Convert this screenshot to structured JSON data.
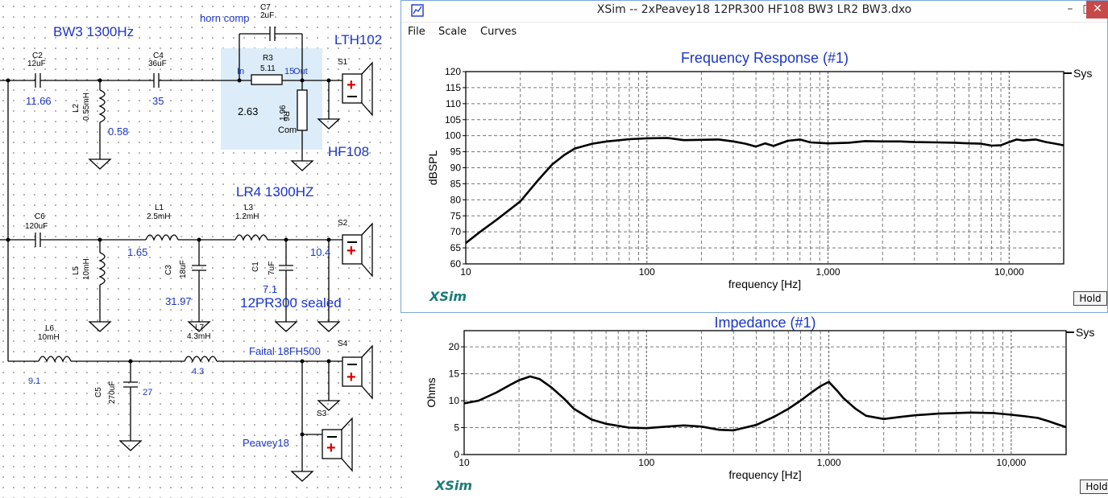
{
  "schematic": {
    "labels": {
      "bw3": "BW3 1300Hz",
      "horn_comp": "horn comp",
      "lth102": "LTH102",
      "hf108": "HF108",
      "lr4": "LR4 1300HZ",
      "sealed": "12PR300 sealed",
      "faital": "Faital 18FH500",
      "peavey": "Peavey18",
      "in": "In",
      "out": "Out",
      "com": "Com"
    },
    "components": [
      {
        "id": "C7",
        "value": "2uF"
      },
      {
        "id": "C2",
        "value": "12uF"
      },
      {
        "id": "C4",
        "value": "36uF"
      },
      {
        "id": "R3",
        "value": "5.11"
      },
      {
        "id": "R6",
        "value": "1.96"
      },
      {
        "id": "L2",
        "value": "0.55mH"
      },
      {
        "id": "C6",
        "value": "120uF"
      },
      {
        "id": "L1",
        "value": "2.5mH"
      },
      {
        "id": "L3",
        "value": "1.2mH"
      },
      {
        "id": "L5",
        "value": "10mH"
      },
      {
        "id": "C3",
        "value": "18uF"
      },
      {
        "id": "C1",
        "value": "7uF"
      },
      {
        "id": "L6",
        "value": "10mH"
      },
      {
        "id": "L7",
        "value": "4.3mH"
      },
      {
        "id": "C5",
        "value": "270uF"
      }
    ],
    "speakers": [
      "S1",
      "S2",
      "S3",
      "S4"
    ],
    "values": {
      "c2": "11.66",
      "c4": "35",
      "l2": "0.58",
      "r3": "15",
      "r6": "2.63",
      "l1": "1.65",
      "l3": "10.4",
      "c1": "7.1",
      "c3": "31.97",
      "l6": "9.1",
      "l7": "4.3",
      "c5": "27"
    }
  },
  "window": {
    "title": "XSim -- 2xPeavey18  12PR300  HF108 BW3 LR2 BW3.dxo",
    "minimize": "–",
    "maximize": "□",
    "close": "✕",
    "menu": [
      "File",
      "Scale",
      "Curves"
    ],
    "hold": "Hold",
    "logo": "XSim",
    "colors": {
      "title": "#1a35c8",
      "logo": "#1a7a7a",
      "close": "#c74a4a"
    }
  },
  "impedance_window": {
    "hold": "Hold",
    "logo": "XSim"
  },
  "chart_data": [
    {
      "type": "line",
      "title": "Frequency Response (#1)",
      "xlabel": "frequency [Hz]",
      "ylabel": "dBSPL",
      "x_scale": "log",
      "xlim": [
        10,
        20000
      ],
      "ylim": [
        60,
        120
      ],
      "x_ticks": [
        "10",
        "100",
        "1,000",
        "10,000"
      ],
      "y_ticks": [
        "60",
        "65",
        "70",
        "75",
        "80",
        "85",
        "90",
        "95",
        "100",
        "105",
        "110",
        "115",
        "120"
      ],
      "grid": true,
      "legend": "right",
      "series": [
        {
          "name": "Sys",
          "x": [
            10,
            12,
            15,
            20,
            25,
            30,
            35,
            40,
            50,
            60,
            80,
            100,
            130,
            160,
            200,
            250,
            300,
            350,
            400,
            450,
            500,
            600,
            700,
            800,
            1000,
            1300,
            1600,
            2000,
            2500,
            3000,
            4000,
            5000,
            6000,
            7000,
            8000,
            9000,
            10000,
            11000,
            12000,
            14000,
            16000,
            18000,
            20000
          ],
          "y": [
            66.5,
            70,
            74,
            79.5,
            86,
            91,
            94,
            96,
            97.5,
            98.2,
            98.9,
            99.2,
            99.3,
            98.6,
            98.7,
            98.8,
            98.2,
            97.5,
            96.6,
            97.6,
            96.8,
            98.4,
            98.8,
            97.9,
            97.6,
            97.8,
            98.3,
            98.2,
            98.2,
            98,
            97.9,
            97.8,
            97.6,
            97.5,
            96.9,
            97,
            98,
            98.8,
            98.5,
            98.8,
            98,
            97.5,
            97
          ]
        }
      ]
    },
    {
      "type": "line",
      "title": "Impedance (#1)",
      "xlabel": "frequency [Hz]",
      "ylabel": "Ohms",
      "x_scale": "log",
      "xlim": [
        10,
        20000
      ],
      "ylim": [
        0,
        23
      ],
      "x_ticks": [
        "10",
        "100",
        "1,000",
        "10,000"
      ],
      "y_ticks": [
        "0",
        "5",
        "10",
        "15",
        "20"
      ],
      "grid": true,
      "legend": "right",
      "series": [
        {
          "name": "Sys",
          "x": [
            10,
            12,
            15,
            18,
            20,
            23,
            26,
            30,
            35,
            40,
            50,
            60,
            80,
            100,
            130,
            160,
            200,
            250,
            300,
            400,
            500,
            600,
            700,
            800,
            900,
            1000,
            1100,
            1200,
            1400,
            1600,
            2000,
            2500,
            3000,
            4000,
            5000,
            6000,
            8000,
            10000,
            12000,
            14000,
            16000,
            18000,
            20000
          ],
          "y": [
            9.5,
            10,
            11.5,
            13,
            13.8,
            14.5,
            14,
            12.5,
            10.5,
            8.5,
            6.5,
            5.7,
            5,
            4.9,
            5.2,
            5.4,
            5.2,
            4.6,
            4.5,
            5.5,
            7,
            8.5,
            10,
            11.5,
            12.7,
            13.5,
            12,
            10.5,
            8.5,
            7.2,
            6.6,
            7,
            7.3,
            7.6,
            7.7,
            7.8,
            7.7,
            7.4,
            7.1,
            6.8,
            6.2,
            5.6,
            5.1
          ]
        }
      ]
    }
  ]
}
